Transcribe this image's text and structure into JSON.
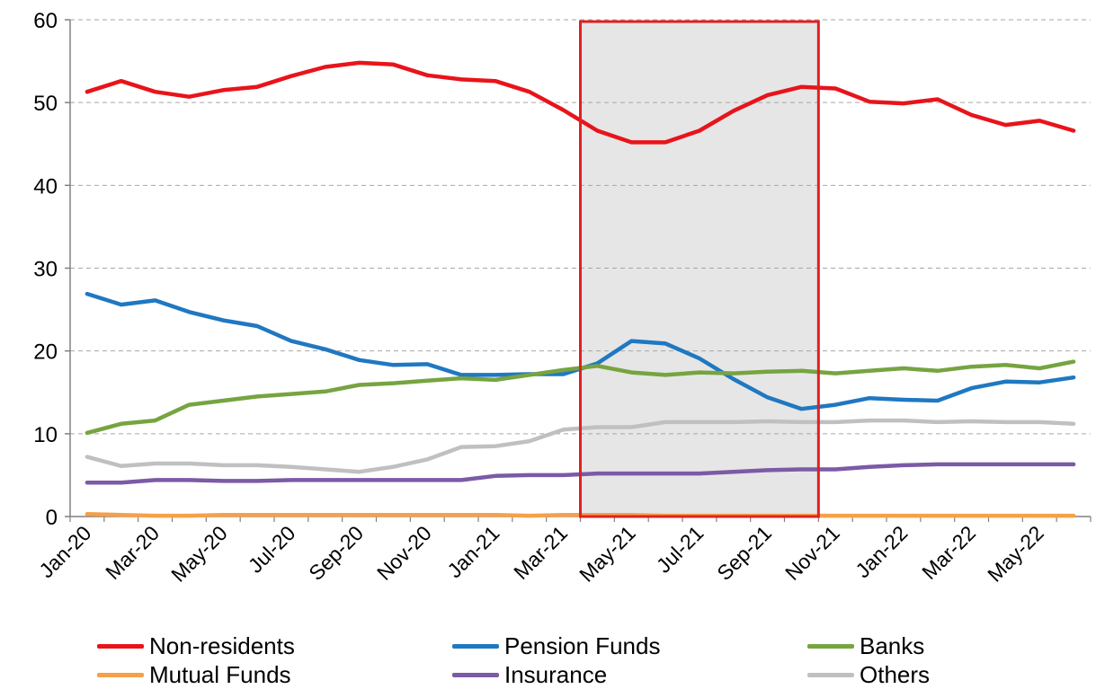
{
  "chart_data": {
    "type": "line",
    "title": "",
    "xlabel": "",
    "ylabel": "",
    "ylim": [
      0,
      60
    ],
    "yticks": [
      0,
      10,
      20,
      30,
      40,
      50,
      60
    ],
    "grid": "horizontal-dashed",
    "legend_position": "bottom",
    "x": [
      "Jan-20",
      "Feb-20",
      "Mar-20",
      "Apr-20",
      "May-20",
      "Jun-20",
      "Jul-20",
      "Aug-20",
      "Sep-20",
      "Oct-20",
      "Nov-20",
      "Dec-20",
      "Jan-21",
      "Feb-21",
      "Mar-21",
      "Apr-21",
      "May-21",
      "Jun-21",
      "Jul-21",
      "Aug-21",
      "Sep-21",
      "Oct-21",
      "Nov-21",
      "Dec-21",
      "Jan-22",
      "Feb-22",
      "Mar-22",
      "Apr-22",
      "May-22",
      "Jun-22"
    ],
    "xtick_labels": [
      "Jan-20",
      "Mar-20",
      "May-20",
      "Jul-20",
      "Sep-20",
      "Nov-20",
      "Jan-21",
      "Mar-21",
      "May-21",
      "Jul-21",
      "Sep-21",
      "Nov-21",
      "Jan-22",
      "Mar-22",
      "May-22"
    ],
    "highlight": {
      "from": "Mar-21",
      "to": "Oct-21",
      "fill": "#e6e6e6",
      "border": "#e02020"
    },
    "series": [
      {
        "name": "Non-residents",
        "color": "#e8141b",
        "values": [
          51.3,
          52.6,
          51.3,
          50.7,
          51.5,
          51.9,
          53.2,
          54.3,
          54.8,
          54.6,
          53.3,
          52.8,
          52.6,
          51.3,
          49.1,
          46.6,
          45.2,
          45.2,
          46.6,
          49.0,
          50.9,
          51.9,
          51.7,
          50.1,
          49.9,
          50.4,
          48.5,
          47.3,
          47.8,
          46.6
        ]
      },
      {
        "name": "Pension Funds",
        "color": "#1f78c1",
        "values": [
          26.9,
          25.6,
          26.1,
          24.7,
          23.7,
          23.0,
          21.2,
          20.2,
          18.9,
          18.3,
          18.4,
          17.1,
          17.1,
          17.2,
          17.2,
          18.5,
          21.2,
          20.9,
          19.1,
          16.6,
          14.4,
          13.0,
          13.5,
          14.3,
          14.1,
          14.0,
          15.5,
          16.3,
          16.2,
          16.8
        ]
      },
      {
        "name": "Banks",
        "color": "#76a441",
        "values": [
          10.1,
          11.2,
          11.6,
          13.5,
          14.0,
          14.5,
          14.8,
          15.1,
          15.9,
          16.1,
          16.4,
          16.7,
          16.5,
          17.1,
          17.7,
          18.2,
          17.4,
          17.1,
          17.4,
          17.3,
          17.5,
          17.6,
          17.3,
          17.6,
          17.9,
          17.6,
          18.1,
          18.3,
          17.9,
          18.7
        ]
      },
      {
        "name": "Mutual Funds",
        "color": "#f5a04a",
        "values": [
          0.3,
          0.2,
          0.1,
          0.1,
          0.2,
          0.2,
          0.2,
          0.2,
          0.2,
          0.2,
          0.2,
          0.2,
          0.2,
          0.1,
          0.2,
          0.2,
          0.2,
          0.1,
          0.1,
          0.1,
          0.1,
          0.1,
          0.1,
          0.1,
          0.1,
          0.1,
          0.1,
          0.1,
          0.1,
          0.1
        ]
      },
      {
        "name": "Insurance",
        "color": "#7b5aa6",
        "values": [
          4.1,
          4.1,
          4.4,
          4.4,
          4.3,
          4.3,
          4.4,
          4.4,
          4.4,
          4.4,
          4.4,
          4.4,
          4.9,
          5.0,
          5.0,
          5.2,
          5.2,
          5.2,
          5.2,
          5.4,
          5.6,
          5.7,
          5.7,
          6.0,
          6.2,
          6.3,
          6.3,
          6.3,
          6.3,
          6.3
        ]
      },
      {
        "name": "Others",
        "color": "#c0c0c0",
        "values": [
          7.2,
          6.1,
          6.4,
          6.4,
          6.2,
          6.2,
          6.0,
          5.7,
          5.4,
          6.0,
          6.9,
          8.4,
          8.5,
          9.1,
          10.5,
          10.8,
          10.8,
          11.4,
          11.4,
          11.4,
          11.5,
          11.4,
          11.4,
          11.6,
          11.6,
          11.4,
          11.5,
          11.4,
          11.4,
          11.2
        ]
      }
    ]
  }
}
